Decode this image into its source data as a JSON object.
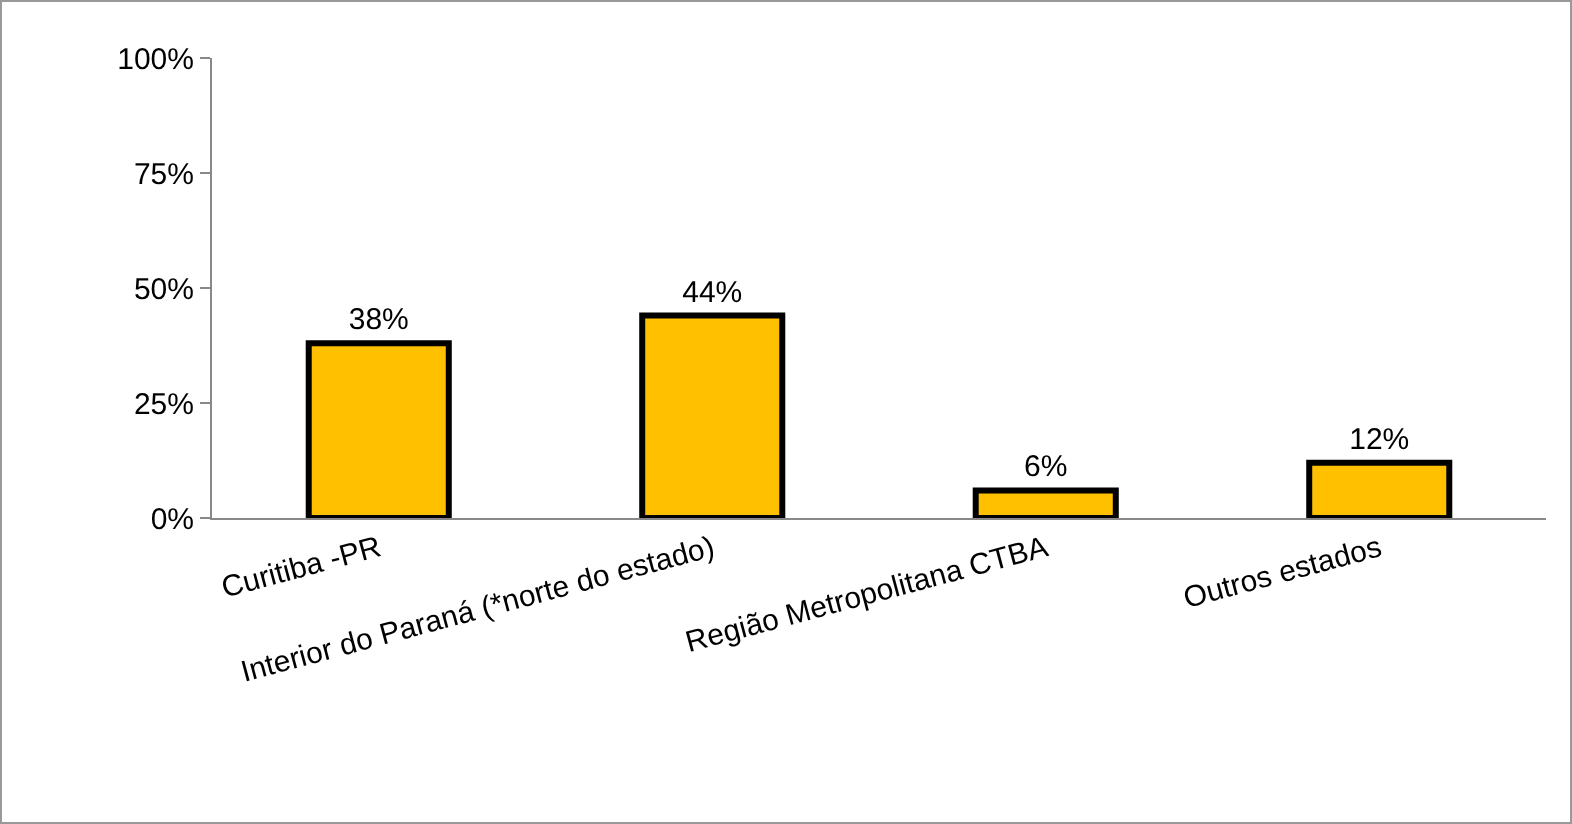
{
  "chart_data": {
    "type": "bar",
    "categories": [
      "Curitiba -PR",
      "Interior do Paraná (*norte do estado)",
      "Região Metropolitana CTBA",
      "Outros estados"
    ],
    "values": [
      38,
      44,
      6,
      12
    ],
    "value_labels": [
      "38%",
      "44%",
      "6%",
      "12%"
    ],
    "color": "#ffc000",
    "ylim": [
      0,
      100
    ],
    "yticks": [
      {
        "value": 0,
        "label": "0%"
      },
      {
        "value": 25,
        "label": "25%"
      },
      {
        "value": 50,
        "label": "50%"
      },
      {
        "value": 75,
        "label": "75%"
      },
      {
        "value": 100,
        "label": "100%"
      }
    ],
    "grid": false,
    "legend": false
  }
}
